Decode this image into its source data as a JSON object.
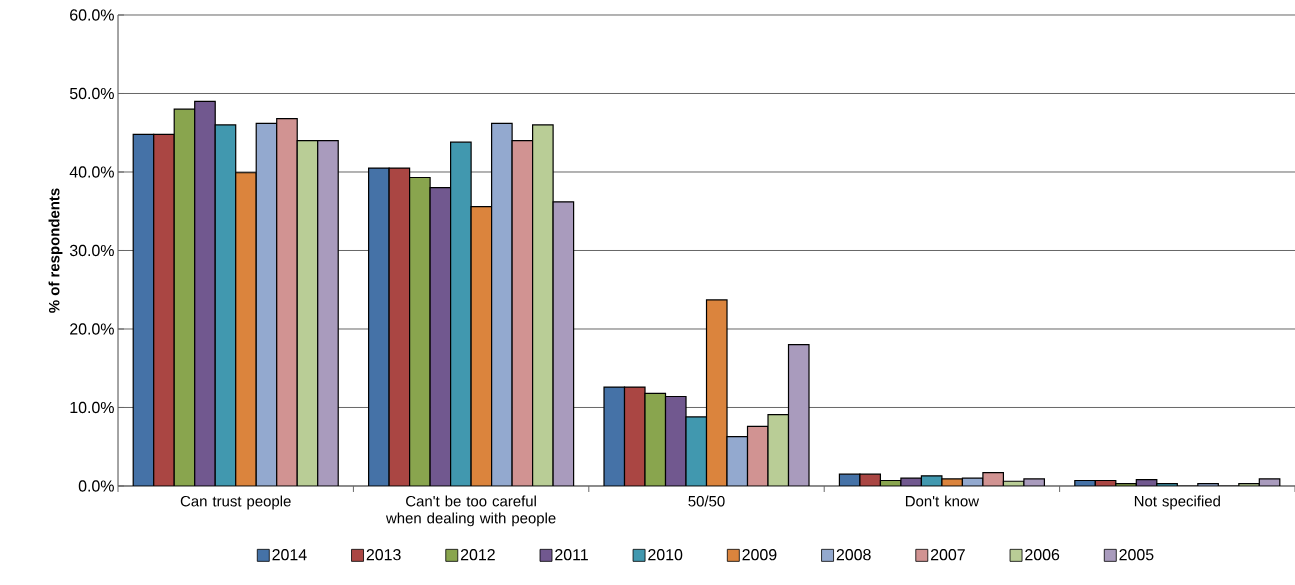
{
  "chart_data": {
    "type": "bar",
    "ylabel": "% of respondents",
    "categories": [
      "Can trust people",
      "Can't be too careful when dealing with people",
      "50/50",
      "Don't know",
      "Not specified"
    ],
    "series": [
      {
        "name": "2014",
        "color": "#4572a7",
        "values": [
          44.8,
          40.5,
          12.6,
          1.5,
          0.7
        ]
      },
      {
        "name": "2013",
        "color": "#aa4643",
        "values": [
          44.8,
          40.5,
          12.6,
          1.5,
          0.7
        ]
      },
      {
        "name": "2012",
        "color": "#89a54e",
        "values": [
          48.0,
          39.3,
          11.8,
          0.7,
          0.3
        ]
      },
      {
        "name": "2011",
        "color": "#71588f",
        "values": [
          49.0,
          38.0,
          11.4,
          1.0,
          0.8
        ]
      },
      {
        "name": "2010",
        "color": "#4198af",
        "values": [
          46.0,
          43.8,
          8.8,
          1.3,
          0.3
        ]
      },
      {
        "name": "2009",
        "color": "#db843d",
        "values": [
          39.9,
          35.6,
          23.7,
          0.9,
          0
        ]
      },
      {
        "name": "2008",
        "color": "#93a9cf",
        "values": [
          46.2,
          46.2,
          6.3,
          1.0,
          0.3
        ]
      },
      {
        "name": "2007",
        "color": "#d19392",
        "values": [
          46.8,
          44.0,
          7.6,
          1.7,
          0
        ]
      },
      {
        "name": "2006",
        "color": "#b9cd96",
        "values": [
          44.0,
          46.0,
          9.1,
          0.6,
          0.3
        ]
      },
      {
        "name": "2005",
        "color": "#a99bbd",
        "values": [
          44.0,
          36.2,
          18.0,
          0.9,
          0.9
        ]
      }
    ],
    "ylim": [
      0,
      60
    ],
    "yticks": [
      {
        "value": 0,
        "label": "0.0%"
      },
      {
        "value": 10,
        "label": "10.0%"
      },
      {
        "value": 20,
        "label": "20.0%"
      },
      {
        "value": 30,
        "label": "30.0%"
      },
      {
        "value": 40,
        "label": "40.0%"
      },
      {
        "value": 50,
        "label": "50.0%"
      },
      {
        "value": 60,
        "label": "60.0%"
      }
    ],
    "grid": "y",
    "legend": "bottom"
  }
}
